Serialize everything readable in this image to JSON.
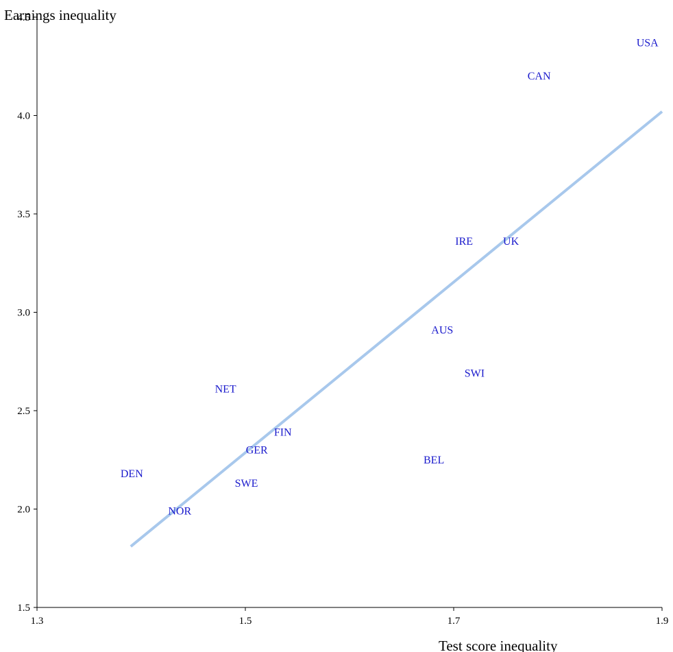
{
  "chart_data": {
    "type": "scatter",
    "title": "",
    "xlabel": "Test score inequality",
    "ylabel": "Earnings inequality",
    "xlim": [
      1.3,
      1.9
    ],
    "ylim": [
      1.5,
      4.5
    ],
    "x_ticks": [
      "1.3",
      "1.5",
      "1.7",
      "1.9"
    ],
    "y_ticks": [
      "1.5",
      "2.0",
      "2.5",
      "3.0",
      "3.5",
      "4.0",
      "4.5"
    ],
    "grid": false,
    "legend": "none",
    "points": [
      {
        "label": "USA",
        "x": 1.886,
        "y": 4.37
      },
      {
        "label": "CAN",
        "x": 1.782,
        "y": 4.2
      },
      {
        "label": "IRE",
        "x": 1.71,
        "y": 3.36
      },
      {
        "label": "UK",
        "x": 1.755,
        "y": 3.36
      },
      {
        "label": "AUS",
        "x": 1.689,
        "y": 2.91
      },
      {
        "label": "SWI",
        "x": 1.72,
        "y": 2.69
      },
      {
        "label": "NET",
        "x": 1.481,
        "y": 2.61
      },
      {
        "label": "FIN",
        "x": 1.536,
        "y": 2.39
      },
      {
        "label": "GER",
        "x": 1.511,
        "y": 2.3
      },
      {
        "label": "BEL",
        "x": 1.681,
        "y": 2.25
      },
      {
        "label": "DEN",
        "x": 1.391,
        "y": 2.18
      },
      {
        "label": "SWE",
        "x": 1.501,
        "y": 2.13
      },
      {
        "label": "NOR",
        "x": 1.437,
        "y": 1.99
      }
    ],
    "trend_line": {
      "x": [
        1.39,
        1.9
      ],
      "y": [
        1.81,
        4.02
      ]
    },
    "colors": {
      "point_label": "#1a1acc",
      "trend_line": "#a8c8ec",
      "axis": "#000000"
    }
  }
}
